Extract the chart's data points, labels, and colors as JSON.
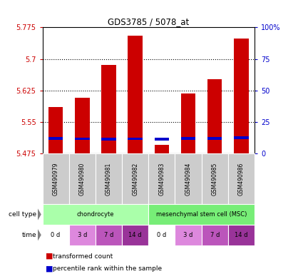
{
  "title": "GDS3785 / 5078_at",
  "samples": [
    "GSM490979",
    "GSM490980",
    "GSM490981",
    "GSM490982",
    "GSM490983",
    "GSM490984",
    "GSM490985",
    "GSM490986"
  ],
  "red_values": [
    5.585,
    5.607,
    5.685,
    5.755,
    5.495,
    5.617,
    5.652,
    5.748
  ],
  "blue_values": [
    5.508,
    5.507,
    5.506,
    5.507,
    5.506,
    5.508,
    5.508,
    5.509
  ],
  "blue_heights": [
    0.006,
    0.006,
    0.006,
    0.006,
    0.006,
    0.006,
    0.006,
    0.006
  ],
  "bar_base": 5.475,
  "ylim_left": [
    5.475,
    5.775
  ],
  "ylim_right": [
    0,
    100
  ],
  "yticks_left": [
    5.475,
    5.55,
    5.625,
    5.7,
    5.775
  ],
  "yticks_right": [
    0,
    25,
    50,
    75,
    100
  ],
  "ytick_labels_left": [
    "5.475",
    "5.55",
    "5.625",
    "5.7",
    "5.775"
  ],
  "ytick_labels_right": [
    "0",
    "25",
    "50",
    "75",
    "100%"
  ],
  "hgrid_values": [
    5.55,
    5.625,
    5.7
  ],
  "red_color": "#cc0000",
  "blue_color": "#0000cc",
  "bar_width": 0.55,
  "cell_types": [
    {
      "label": "chondrocyte",
      "start": 0,
      "end": 4,
      "color": "#aaffaa"
    },
    {
      "label": "mesenchymal stem cell (MSC)",
      "start": 4,
      "end": 8,
      "color": "#77ee77"
    }
  ],
  "time_labels": [
    "0 d",
    "3 d",
    "7 d",
    "14 d",
    "0 d",
    "3 d",
    "7 d",
    "14 d"
  ],
  "time_colors": [
    "#ffffff",
    "#dd88dd",
    "#bb55bb",
    "#993399",
    "#ffffff",
    "#dd88dd",
    "#bb55bb",
    "#993399"
  ],
  "sample_bg_color": "#cccccc",
  "legend_red": "transformed count",
  "legend_blue": "percentile rank within the sample",
  "left_tick_color": "#cc0000",
  "right_tick_color": "#0000cc",
  "cell_type_label": "cell type",
  "time_label": "time"
}
